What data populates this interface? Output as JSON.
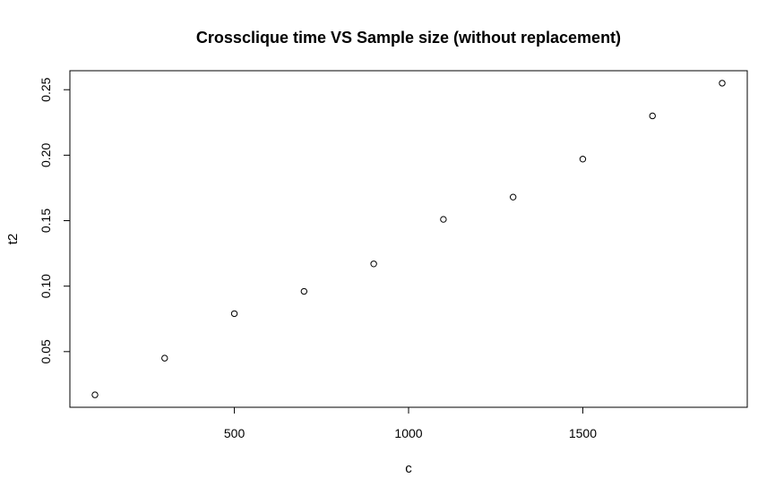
{
  "chart_data": {
    "type": "scatter",
    "title": "Crossclique time VS Sample size (without replacement)",
    "xlabel": "c",
    "ylabel": "t2",
    "x": [
      100,
      300,
      500,
      700,
      900,
      1100,
      1300,
      1500,
      1700,
      1900
    ],
    "y": [
      0.017,
      0.045,
      0.079,
      0.096,
      0.117,
      0.151,
      0.168,
      0.197,
      0.23,
      0.255
    ],
    "xlim": [
      28,
      1972
    ],
    "ylim": [
      0.0075,
      0.2645
    ],
    "xticks": [
      500,
      1000,
      1500
    ],
    "yticks": [
      0.05,
      0.1,
      0.15,
      0.2,
      0.25
    ],
    "xtick_labels": [
      "500",
      "1000",
      "1500"
    ],
    "ytick_labels": [
      "0.05",
      "0.10",
      "0.15",
      "0.20",
      "0.25"
    ],
    "marker": "open-circle",
    "grid": false,
    "legend": "none",
    "colors": {
      "points": "#000000",
      "background": "#ffffff"
    }
  }
}
